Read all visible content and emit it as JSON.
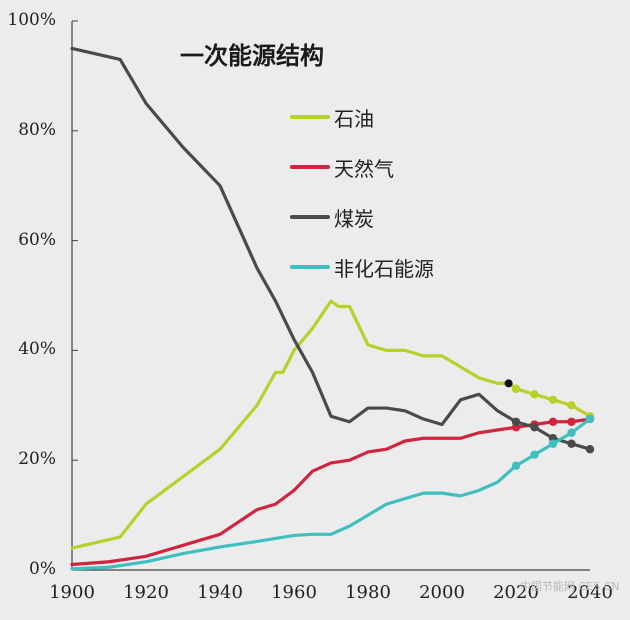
{
  "chart_data": {
    "type": "line",
    "title": "一次能源结构",
    "xlabel": "",
    "ylabel": "",
    "xlim": [
      1900,
      2040
    ],
    "ylim": [
      0,
      100
    ],
    "x_ticks": [
      "1900",
      "1920",
      "1940",
      "1960",
      "1980",
      "2000",
      "2020",
      "2040"
    ],
    "y_ticks": [
      "0%",
      "20%",
      "40%",
      "60%",
      "80%",
      "100%"
    ],
    "legend_position": "upper-center",
    "series": [
      {
        "name": "石油",
        "color": "#b9cf2a",
        "x": [
          1900,
          1913,
          1920,
          1930,
          1940,
          1950,
          1955,
          1957,
          1960,
          1965,
          1970,
          1972,
          1975,
          1980,
          1985,
          1990,
          1995,
          2000,
          2005,
          2010,
          2015,
          2018,
          2020,
          2025,
          2030,
          2035,
          2040
        ],
        "y": [
          4,
          6,
          12,
          17,
          22,
          30,
          36,
          36,
          40,
          44,
          49,
          48,
          48,
          41,
          40,
          40,
          39,
          39,
          37,
          35,
          34,
          34,
          33,
          32,
          31,
          30,
          28
        ]
      },
      {
        "name": "天然气",
        "color": "#d0243f",
        "x": [
          1900,
          1910,
          1920,
          1930,
          1940,
          1950,
          1955,
          1960,
          1965,
          1970,
          1975,
          1980,
          1985,
          1990,
          1995,
          2000,
          2005,
          2010,
          2015,
          2020,
          2025,
          2030,
          2035,
          2040
        ],
        "y": [
          1,
          1.5,
          2.5,
          4.5,
          6.5,
          11,
          12,
          14.5,
          18,
          19.5,
          20,
          21.5,
          22,
          23.5,
          24,
          24,
          24,
          25,
          25.5,
          26,
          26.5,
          27,
          27,
          27.5
        ]
      },
      {
        "name": "煤炭",
        "color": "#4a4a4a",
        "x": [
          1900,
          1913,
          1920,
          1930,
          1940,
          1950,
          1955,
          1960,
          1965,
          1970,
          1975,
          1980,
          1985,
          1990,
          1995,
          2000,
          2005,
          2010,
          2015,
          2020,
          2025,
          2030,
          2035,
          2040
        ],
        "y": [
          95,
          93,
          85,
          77,
          70,
          55,
          49,
          42,
          36,
          28,
          27,
          29.5,
          29.5,
          29,
          27.5,
          26.5,
          31,
          32,
          29,
          27,
          26,
          24,
          23,
          22
        ]
      },
      {
        "name": "非化石能源",
        "color": "#3fbfbf",
        "x": [
          1900,
          1910,
          1920,
          1930,
          1940,
          1950,
          1960,
          1965,
          1970,
          1975,
          1980,
          1985,
          1990,
          1995,
          2000,
          2005,
          2010,
          2015,
          2020,
          2025,
          2030,
          2035,
          2040
        ],
        "y": [
          0.2,
          0.5,
          1.5,
          3,
          4.2,
          5.2,
          6.3,
          6.5,
          6.5,
          8,
          10,
          12,
          13,
          14,
          14,
          13.5,
          14.5,
          16,
          19,
          21,
          23,
          25,
          27.5
        ]
      }
    ],
    "markers": {
      "note": "projection points (dotted with markers) after ~2018",
      "highlight_point": {
        "series": "石油",
        "x": 2018,
        "y": 34,
        "color": "#111111"
      }
    }
  },
  "watermark": "中国节能网 CES.CN"
}
